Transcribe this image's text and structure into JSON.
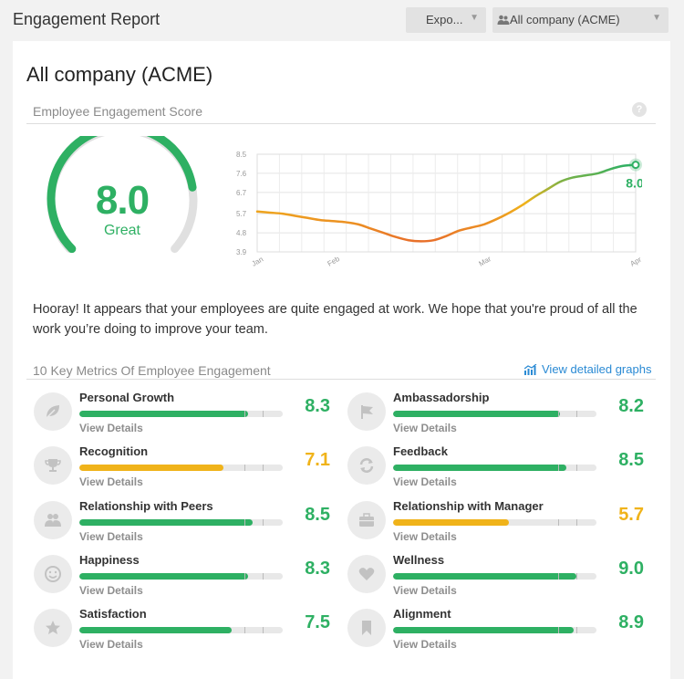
{
  "header": {
    "title": "Engagement Report",
    "export_label": "Expo...",
    "company_select": "All company (ACME)",
    "company_icon": "users-icon"
  },
  "main": {
    "company_title": "All company (ACME)",
    "score_section_title": "Employee Engagement Score",
    "score": {
      "value": "8.0",
      "label": "Great",
      "gauge_fraction": 0.8,
      "color": "#2eb063"
    },
    "message": "Hooray! It appears that your employees are quite engaged at work. We hope that you're proud of all the work you’re doing to improve your team.",
    "metrics_section_title": "10 Key Metrics Of Employee Engagement",
    "view_graphs_label": "View detailed graphs",
    "view_details_label": "View Details"
  },
  "colors": {
    "green": "#2eb063",
    "orange": "#f0b31a",
    "link_blue": "#2a8ad4"
  },
  "chart_data": {
    "type": "line",
    "ylim": [
      3.9,
      8.5
    ],
    "y_ticks": [
      "8.5",
      "7.6",
      "6.7",
      "5.7",
      "4.8",
      "3.9"
    ],
    "x_ticks": [
      "Jan",
      "Feb",
      "Mar",
      "Apr"
    ],
    "x_ticks_index": [
      0,
      6,
      18,
      30
    ],
    "values": [
      5.8,
      5.75,
      5.7,
      5.6,
      5.5,
      5.4,
      5.35,
      5.3,
      5.2,
      5.0,
      4.8,
      4.6,
      4.45,
      4.4,
      4.45,
      4.65,
      4.9,
      5.05,
      5.2,
      5.45,
      5.75,
      6.1,
      6.5,
      6.85,
      7.2,
      7.4,
      7.5,
      7.6,
      7.8,
      7.95,
      8.0
    ],
    "end_label": "8.0"
  },
  "metrics": [
    {
      "name": "Personal Growth",
      "score": "8.3",
      "value": 8.3,
      "icon": "leaf-icon",
      "color": "#2eb063"
    },
    {
      "name": "Ambassadorship",
      "score": "8.2",
      "value": 8.2,
      "icon": "flag-icon",
      "color": "#2eb063"
    },
    {
      "name": "Recognition",
      "score": "7.1",
      "value": 7.1,
      "icon": "trophy-icon",
      "color": "#f0b31a"
    },
    {
      "name": "Feedback",
      "score": "8.5",
      "value": 8.5,
      "icon": "refresh-icon",
      "color": "#2eb063"
    },
    {
      "name": "Relationship with Peers",
      "score": "8.5",
      "value": 8.5,
      "icon": "people-icon",
      "color": "#2eb063"
    },
    {
      "name": "Relationship with Manager",
      "score": "5.7",
      "value": 5.7,
      "icon": "briefcase-icon",
      "color": "#f0b31a"
    },
    {
      "name": "Happiness",
      "score": "8.3",
      "value": 8.3,
      "icon": "smiley-icon",
      "color": "#2eb063"
    },
    {
      "name": "Wellness",
      "score": "9.0",
      "value": 9.0,
      "icon": "heart-icon",
      "color": "#2eb063"
    },
    {
      "name": "Satisfaction",
      "score": "7.5",
      "value": 7.5,
      "icon": "star-icon",
      "color": "#2eb063"
    },
    {
      "name": "Alignment",
      "score": "8.9",
      "value": 8.9,
      "icon": "bookmark-icon",
      "color": "#2eb063"
    }
  ]
}
